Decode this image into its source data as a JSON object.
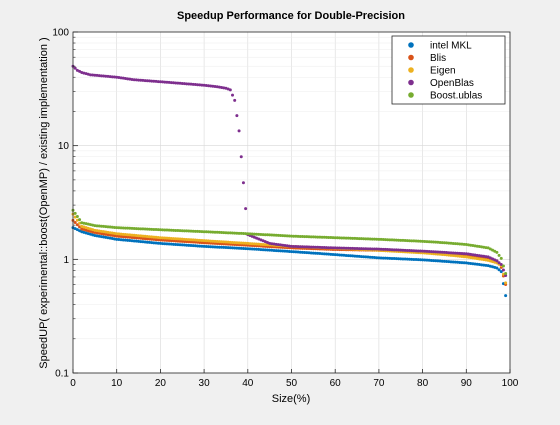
{
  "chart_data": {
    "type": "scatter",
    "title": "Speedup Performance for Double-Precision",
    "xlabel": "Size(%)",
    "ylabel": "SpeedUP( experimental::boost(OpenMP) / existing implementation  )",
    "xlim": [
      0,
      100
    ],
    "ylim": [
      0.1,
      100
    ],
    "y_scale": "log",
    "x_ticks": [
      "0",
      "10",
      "20",
      "30",
      "40",
      "50",
      "60",
      "70",
      "80",
      "90",
      "100"
    ],
    "y_ticks": [
      "0.1",
      "1",
      "10",
      "100"
    ],
    "grid": true,
    "legend_position": "top-right",
    "series": [
      {
        "name": "intel MKL",
        "color": "#0072BD",
        "x": [
          0,
          2,
          5,
          10,
          20,
          30,
          40,
          50,
          60,
          70,
          80,
          85,
          90,
          95,
          97,
          98,
          99
        ],
        "y": [
          1.9,
          1.75,
          1.62,
          1.5,
          1.38,
          1.3,
          1.24,
          1.17,
          1.1,
          1.03,
          0.99,
          0.96,
          0.93,
          0.88,
          0.84,
          0.78,
          0.48
        ]
      },
      {
        "name": "Blis",
        "color": "#D95319",
        "x": [
          0,
          2,
          5,
          10,
          20,
          30,
          40,
          50,
          60,
          70,
          80,
          85,
          90,
          95,
          97,
          98,
          99
        ],
        "y": [
          2.2,
          1.85,
          1.72,
          1.6,
          1.48,
          1.4,
          1.33,
          1.26,
          1.22,
          1.2,
          1.16,
          1.13,
          1.1,
          1.03,
          0.97,
          0.85,
          0.6
        ]
      },
      {
        "name": "Eigen",
        "color": "#EDB120",
        "x": [
          0,
          2,
          5,
          10,
          20,
          30,
          40,
          50,
          60,
          70,
          80,
          85,
          90,
          95,
          97,
          98,
          99
        ],
        "y": [
          2.5,
          1.95,
          1.8,
          1.68,
          1.55,
          1.46,
          1.38,
          1.3,
          1.25,
          1.2,
          1.14,
          1.1,
          1.05,
          0.98,
          0.93,
          0.88,
          0.62
        ]
      },
      {
        "name": "OpenBlas",
        "color": "#7E2F8E",
        "x": [
          0,
          1,
          2,
          4,
          7,
          10,
          14,
          18,
          22,
          26,
          30,
          33,
          35,
          36,
          37,
          38,
          40,
          45,
          50,
          60,
          70,
          80,
          85,
          90,
          95,
          97,
          98,
          99
        ],
        "y": [
          50,
          46,
          44,
          42,
          41,
          40,
          38,
          37,
          36,
          35,
          34,
          33,
          32,
          31,
          25,
          13.5,
          1.65,
          1.38,
          1.3,
          1.26,
          1.23,
          1.18,
          1.15,
          1.12,
          1.05,
          0.97,
          0.9,
          0.72
        ]
      },
      {
        "name": "Boost.ublas",
        "color": "#77AC30",
        "x": [
          0,
          2,
          5,
          10,
          20,
          30,
          40,
          50,
          60,
          70,
          80,
          85,
          90,
          95,
          97,
          98,
          99
        ],
        "y": [
          2.7,
          2.1,
          1.98,
          1.9,
          1.82,
          1.75,
          1.68,
          1.6,
          1.55,
          1.5,
          1.44,
          1.4,
          1.35,
          1.26,
          1.15,
          1.02,
          0.75
        ]
      }
    ]
  }
}
